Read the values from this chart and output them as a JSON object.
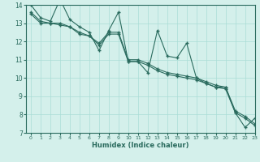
{
  "title": "",
  "xlabel": "Humidex (Indice chaleur)",
  "ylabel": "",
  "bg_color": "#d4f0eb",
  "grid_color": "#aaddd6",
  "line_color": "#2a6b5e",
  "xlim": [
    -0.5,
    23
  ],
  "ylim": [
    7,
    14
  ],
  "xticks": [
    0,
    1,
    2,
    3,
    4,
    5,
    6,
    7,
    8,
    9,
    10,
    11,
    12,
    13,
    14,
    15,
    16,
    17,
    18,
    19,
    20,
    21,
    22,
    23
  ],
  "yticks": [
    7,
    8,
    9,
    10,
    11,
    12,
    13,
    14
  ],
  "series": [
    {
      "x": [
        0,
        1,
        2,
        3,
        4,
        5,
        6,
        7,
        8,
        9,
        10,
        11,
        12,
        13,
        14,
        15,
        16,
        17,
        18,
        19,
        20,
        21,
        22,
        23
      ],
      "y": [
        14.0,
        13.3,
        13.1,
        14.3,
        13.2,
        12.8,
        12.5,
        11.5,
        12.6,
        13.6,
        10.9,
        10.9,
        10.3,
        12.6,
        11.2,
        11.1,
        11.9,
        10.0,
        9.7,
        9.5,
        9.5,
        8.1,
        7.3,
        7.8
      ]
    },
    {
      "x": [
        0,
        1,
        2,
        3,
        4,
        5,
        6,
        7,
        8,
        9,
        10,
        11,
        12,
        13,
        14,
        15,
        16,
        17,
        18,
        19,
        20,
        21,
        22,
        23
      ],
      "y": [
        13.6,
        13.1,
        13.0,
        13.0,
        12.8,
        12.5,
        12.3,
        11.9,
        12.5,
        12.5,
        11.0,
        11.0,
        10.8,
        10.5,
        10.3,
        10.2,
        10.1,
        10.0,
        9.8,
        9.6,
        9.5,
        8.2,
        7.9,
        7.5
      ]
    },
    {
      "x": [
        0,
        1,
        2,
        3,
        4,
        5,
        6,
        7,
        8,
        9,
        10,
        11,
        12,
        13,
        14,
        15,
        16,
        17,
        18,
        19,
        20,
        21,
        22,
        23
      ],
      "y": [
        13.5,
        13.0,
        13.0,
        12.9,
        12.8,
        12.4,
        12.3,
        11.8,
        12.4,
        12.4,
        10.9,
        10.9,
        10.7,
        10.4,
        10.2,
        10.1,
        10.0,
        9.9,
        9.7,
        9.5,
        9.4,
        8.1,
        7.8,
        7.4
      ]
    }
  ]
}
